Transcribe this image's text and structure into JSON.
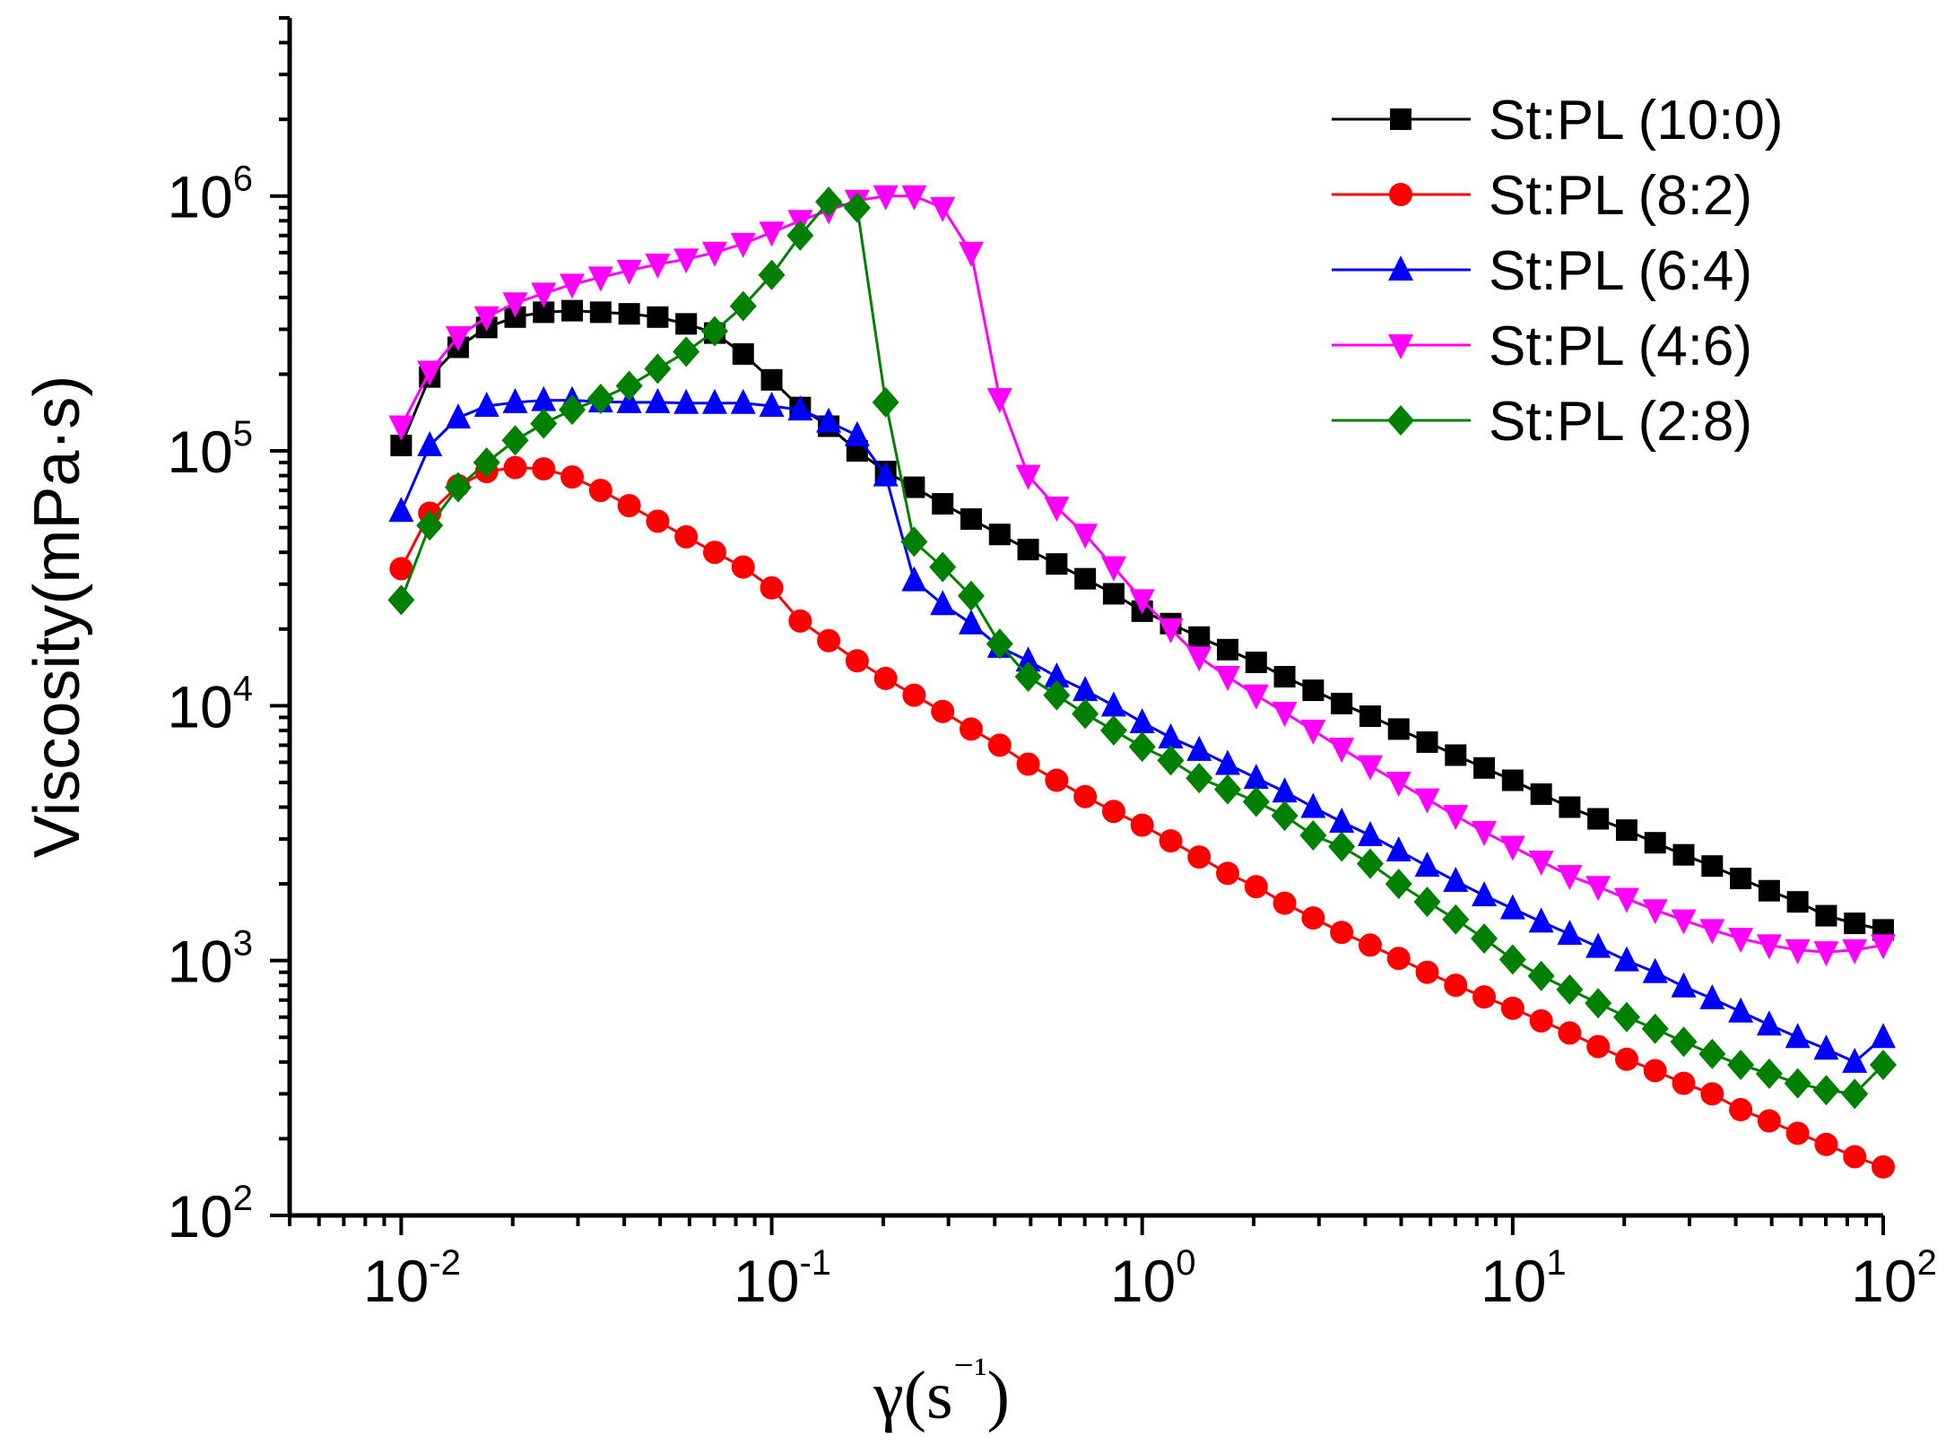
{
  "chart_data": {
    "type": "line",
    "title": "",
    "xlabel": "γ(s⁻¹)",
    "ylabel": "Viscosity(mPa·s)",
    "xscale": "log",
    "yscale": "log",
    "xlim": [
      0.005,
      100
    ],
    "ylim": [
      100,
      5000000
    ],
    "x_ticks": [
      {
        "base": "10",
        "exp": "-2"
      },
      {
        "base": "10",
        "exp": "-1"
      },
      {
        "base": "10",
        "exp": "0"
      },
      {
        "base": "10",
        "exp": "1"
      },
      {
        "base": "10",
        "exp": "2"
      }
    ],
    "y_ticks": [
      {
        "base": "10",
        "exp": "2"
      },
      {
        "base": "10",
        "exp": "3"
      },
      {
        "base": "10",
        "exp": "4"
      },
      {
        "base": "10",
        "exp": "5"
      },
      {
        "base": "10",
        "exp": "6"
      }
    ],
    "legend_position": "top-right",
    "x": [
      0.01,
      0.01194,
      0.01425,
      0.01701,
      0.02031,
      0.02424,
      0.02894,
      0.03455,
      0.04125,
      0.04924,
      0.05878,
      0.07017,
      0.08377,
      0.1,
      0.1194,
      0.1425,
      0.1701,
      0.2031,
      0.2424,
      0.2894,
      0.3455,
      0.4125,
      0.4924,
      0.5878,
      0.7017,
      0.8377,
      1.0,
      1.194,
      1.425,
      1.701,
      2.031,
      2.424,
      2.894,
      3.455,
      4.125,
      4.924,
      5.878,
      7.017,
      8.377,
      10.0,
      11.94,
      14.25,
      17.01,
      20.31,
      24.24,
      28.94,
      34.55,
      41.25,
      49.24,
      58.78,
      70.17,
      83.77,
      100.0
    ],
    "series": [
      {
        "name": "St:PL (10:0)",
        "color": "#000000",
        "marker": "square",
        "values": [
          105000,
          195000,
          255000,
          305000,
          335000,
          350000,
          355000,
          350000,
          345000,
          335000,
          315000,
          290000,
          240000,
          190000,
          148000,
          125000,
          100000,
          83000,
          72000,
          62000,
          54000,
          47000,
          41000,
          36000,
          31500,
          27500,
          23500,
          21000,
          18600,
          16600,
          14800,
          13000,
          11500,
          10200,
          9100,
          8100,
          7200,
          6400,
          5700,
          5100,
          4500,
          4000,
          3600,
          3250,
          2900,
          2600,
          2350,
          2100,
          1880,
          1700,
          1500,
          1400,
          1320
        ]
      },
      {
        "name": "St:PL (8:2)",
        "color": "#ff0000",
        "marker": "circle",
        "values": [
          34500,
          57000,
          73000,
          83000,
          86000,
          85000,
          79000,
          70000,
          61000,
          53000,
          46000,
          40000,
          35000,
          29000,
          21500,
          18000,
          15000,
          12800,
          11000,
          9500,
          8100,
          7000,
          5900,
          5100,
          4400,
          3850,
          3400,
          2950,
          2550,
          2200,
          1950,
          1680,
          1470,
          1290,
          1150,
          1020,
          900,
          800,
          720,
          650,
          580,
          520,
          460,
          410,
          370,
          330,
          300,
          260,
          235,
          210,
          190,
          170,
          155
        ]
      },
      {
        "name": "St:PL (6:4)",
        "color": "#0000ff",
        "marker": "triangle-up",
        "values": [
          58000,
          105000,
          135000,
          150000,
          155000,
          158000,
          158000,
          156000,
          155000,
          155000,
          154000,
          154000,
          154000,
          150000,
          145000,
          130000,
          115000,
          80000,
          31000,
          25000,
          21000,
          17000,
          15000,
          13000,
          11500,
          10000,
          8600,
          7500,
          6700,
          5900,
          5200,
          4600,
          4000,
          3500,
          3100,
          2700,
          2350,
          2050,
          1800,
          1600,
          1420,
          1270,
          1130,
          1000,
          900,
          790,
          710,
          630,
          560,
          500,
          450,
          400,
          500
        ]
      },
      {
        "name": "St:PL (4:6)",
        "color": "#ff00ff",
        "marker": "triangle-down",
        "values": [
          125000,
          205000,
          280000,
          335000,
          380000,
          415000,
          450000,
          480000,
          510000,
          540000,
          565000,
          600000,
          650000,
          720000,
          800000,
          880000,
          960000,
          1000000,
          1000000,
          900000,
          600000,
          160000,
          80000,
          60000,
          47000,
          35000,
          26000,
          20000,
          15500,
          13000,
          11000,
          9400,
          8000,
          6800,
          5800,
          5000,
          4300,
          3700,
          3200,
          2800,
          2450,
          2150,
          1950,
          1750,
          1580,
          1440,
          1320,
          1220,
          1150,
          1100,
          1080,
          1100,
          1150
        ]
      },
      {
        "name": "St:PL (2:8)",
        "color": "#008000",
        "marker": "diamond",
        "values": [
          26000,
          51000,
          72000,
          90000,
          110000,
          128000,
          145000,
          160000,
          180000,
          210000,
          245000,
          295000,
          370000,
          490000,
          700000,
          950000,
          900000,
          155000,
          44000,
          35000,
          27000,
          17500,
          13000,
          11000,
          9300,
          8000,
          6900,
          6100,
          5200,
          4700,
          4200,
          3700,
          3100,
          2800,
          2400,
          2000,
          1700,
          1450,
          1220,
          1010,
          870,
          770,
          680,
          600,
          540,
          480,
          430,
          390,
          360,
          330,
          310,
          300,
          390
        ]
      }
    ]
  }
}
